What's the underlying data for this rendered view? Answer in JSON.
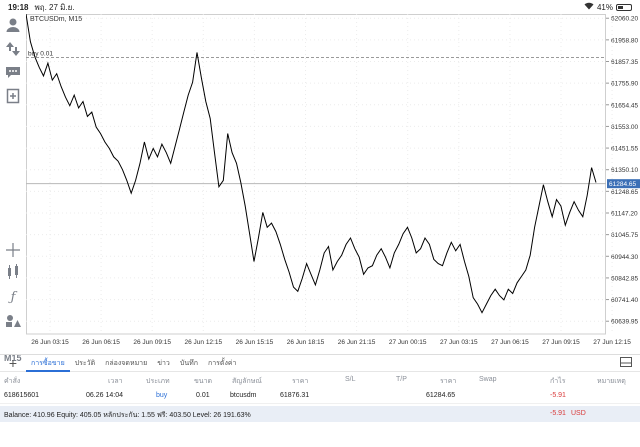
{
  "status": {
    "time": "19:18",
    "date": "พฤ. 27 มิ.ย.",
    "battery": "41%",
    "battery_fraction": 0.41
  },
  "chart": {
    "symbol_label": "BTCUSDm, M15",
    "order_line_label": "buy 0.01",
    "current_price": "61284.65",
    "timeframe_tool": "M15",
    "colors": {
      "price_tag": "#3b6fb6",
      "line": "#000000",
      "grid": "#ececec"
    }
  },
  "chart_data": {
    "type": "line",
    "y_ticks": [
      "62060.20",
      "61958.80",
      "61857.35",
      "61755.90",
      "61654.45",
      "61553.00",
      "61451.55",
      "61350.10",
      "61248.65",
      "61147.20",
      "61045.75",
      "60944.30",
      "60842.85",
      "60741.40",
      "60639.95"
    ],
    "x_ticks": [
      "26 Jun 03:15",
      "26 Jun 06:15",
      "26 Jun 09:15",
      "26 Jun 12:15",
      "26 Jun 15:15",
      "26 Jun 18:15",
      "26 Jun 21:15",
      "27 Jun 00:15",
      "27 Jun 03:15",
      "27 Jun 06:15",
      "27 Jun 09:15",
      "27 Jun 12:15"
    ],
    "ylim": [
      60580,
      62080
    ],
    "order_price": 61876.31,
    "current_price": 61284.65,
    "series": [
      {
        "values": [
          62080,
          61950,
          61880,
          61830,
          61790,
          61850,
          61770,
          61800,
          61740,
          61690,
          61650,
          61700,
          61640,
          61670,
          61600,
          61620,
          61550,
          61520,
          61480,
          61450,
          61410,
          61390,
          61350,
          61300,
          61240,
          61300,
          61380,
          61480,
          61400,
          61450,
          61410,
          61470,
          61430,
          61380,
          61460,
          61540,
          61620,
          61700,
          61760,
          61900,
          61780,
          61670,
          61590,
          61430,
          61270,
          61300,
          61520,
          61430,
          61380,
          61290,
          61180,
          61050,
          60920,
          61030,
          61150,
          61080,
          61100,
          61060,
          61000,
          60930,
          60870,
          60800,
          60780,
          60840,
          60910,
          60860,
          60810,
          60880,
          60960,
          60990,
          60880,
          60920,
          60950,
          61000,
          61030,
          60980,
          60940,
          60860,
          60890,
          60900,
          60950,
          60980,
          60940,
          60890,
          60960,
          61000,
          61050,
          61080,
          61030,
          60960,
          60980,
          61030,
          61000,
          60930,
          60910,
          60900,
          60960,
          61010,
          60970,
          61000,
          60920,
          60850,
          60750,
          60720,
          60680,
          60720,
          60760,
          60790,
          60760,
          60740,
          60790,
          60770,
          60820,
          60850,
          60880,
          60950,
          61080,
          61180,
          61280,
          61200,
          61130,
          61210,
          61180,
          61090,
          61150,
          61200,
          61160,
          61130,
          61230,
          61360,
          61290
        ]
      }
    ]
  },
  "bottom": {
    "tabs": [
      "การซื้อขาย",
      "ประวัติ",
      "กล่องจดหมาย",
      "ข่าว",
      "บันทึก",
      "การตั้งค่า"
    ],
    "headers": [
      "คำสั่ง",
      "เวลา",
      "ประเภท",
      "ขนาด",
      "สัญลักษณ์",
      "ราคา",
      "S/L",
      "T/P",
      "ราคา",
      "Swap",
      "กำไร",
      "หมายเหตุ"
    ],
    "row": {
      "ticket": "618615601",
      "time": "06.26 14:04",
      "type": "buy",
      "size": "0.01",
      "symbol": "btcusdm",
      "open_price": "61876.31",
      "current_price": "61284.65",
      "profit": "-5.91"
    },
    "balance_text": "Balance: 410.96 Equity: 405.05 หลักประกัน: 1.55 ฟรี: 403.50 Level: 26 191.63%",
    "balance_profit": "-5.91",
    "balance_currency": "USD"
  }
}
